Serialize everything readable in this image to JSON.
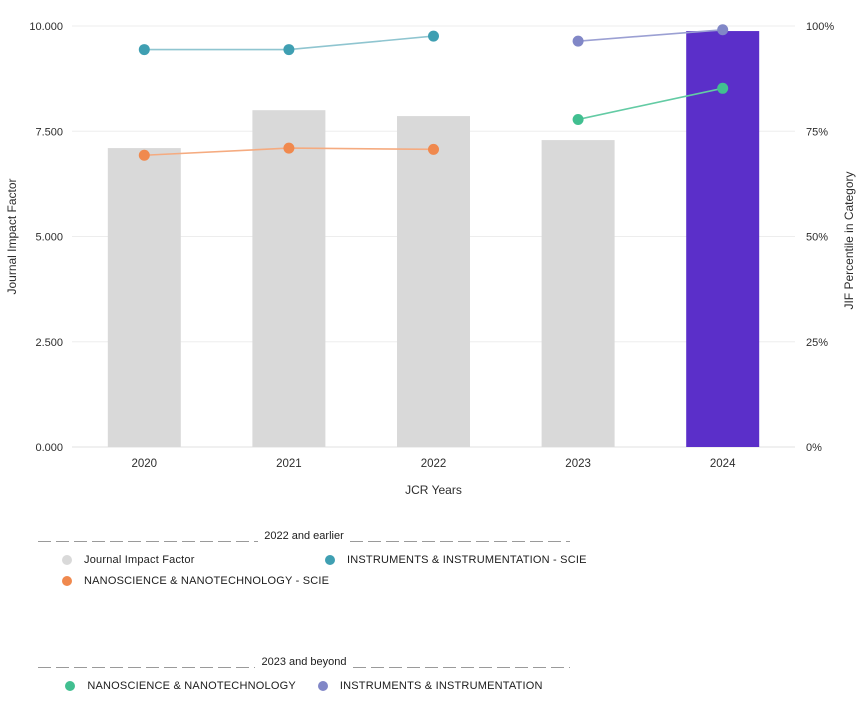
{
  "chart_data": {
    "type": "bar",
    "title": "",
    "xlabel": "JCR Years",
    "ylabel_left": "Journal Impact Factor",
    "ylabel_right": "JIF Percentile in Category",
    "categories": [
      "2020",
      "2021",
      "2022",
      "2023",
      "2024"
    ],
    "left_axis": {
      "min": 0,
      "max": 10,
      "ticks": [
        "0.000",
        "2.500",
        "5.000",
        "7.500",
        "10.000"
      ]
    },
    "right_axis": {
      "min": 0,
      "max": 100,
      "ticks": [
        "0%",
        "25%",
        "50%",
        "75%",
        "100%"
      ]
    },
    "grid": true,
    "legend_position": "bottom",
    "bars": {
      "name": "Journal Impact Factor",
      "values": [
        7.1,
        8.0,
        7.86,
        7.29,
        9.88
      ],
      "colors": [
        "#d9d9d9",
        "#d9d9d9",
        "#d9d9d9",
        "#d9d9d9",
        "#5b2fc9"
      ]
    },
    "series": [
      {
        "name": "INSTRUMENTS & INSTRUMENTATION - SCIE",
        "axis": "right",
        "x": [
          "2020",
          "2021",
          "2022"
        ],
        "values": [
          94.4,
          94.4,
          97.6
        ],
        "dot_color": "#3f9fb2",
        "line_color": "#8fc5d0"
      },
      {
        "name": "NANOSCIENCE & NANOTECHNOLOGY - SCIE",
        "axis": "right",
        "x": [
          "2020",
          "2021",
          "2022"
        ],
        "values": [
          69.3,
          71.0,
          70.7
        ],
        "dot_color": "#f0894e",
        "line_color": "#f5ab80"
      },
      {
        "name": "NANOSCIENCE & NANOTECHNOLOGY",
        "axis": "right",
        "x": [
          "2023",
          "2024"
        ],
        "values": [
          77.8,
          85.2
        ],
        "dot_color": "#41bf90",
        "line_color": "#63cba4"
      },
      {
        "name": "INSTRUMENTS & INSTRUMENTATION",
        "axis": "right",
        "x": [
          "2023",
          "2024"
        ],
        "values": [
          96.4,
          99.1
        ],
        "dot_color": "#8187c7",
        "line_color": "#9ba0d3"
      }
    ],
    "style": {
      "grid_color": "#ededed",
      "baseline_color": "#e2e2e2",
      "text_color": "#2d2d2d"
    }
  },
  "legends": [
    {
      "title": "2022 and earlier",
      "items": [
        {
          "label": "Journal Impact Factor",
          "color": "#d9d9d9"
        },
        {
          "label": "INSTRUMENTS & INSTRUMENTATION - SCIE",
          "color": "#3f9fb2"
        },
        {
          "label": "NANOSCIENCE & NANOTECHNOLOGY - SCIE",
          "color": "#f0894e"
        }
      ]
    },
    {
      "title": "2023 and beyond",
      "items": [
        {
          "label": "NANOSCIENCE & NANOTECHNOLOGY",
          "color": "#41bf90"
        },
        {
          "label": "INSTRUMENTS & INSTRUMENTATION",
          "color": "#8187c7"
        }
      ]
    }
  ]
}
